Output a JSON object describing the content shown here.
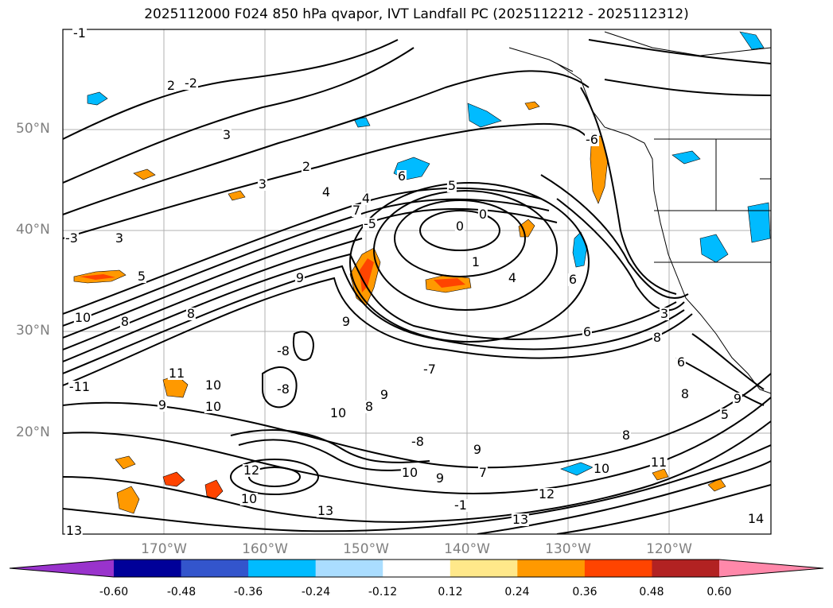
{
  "title": "2025112000 F024 850 hPa qvapor, IVT Landfall PC (2025112212 - 2025112312)",
  "map": {
    "lat_labels": [
      "50°N",
      "40°N",
      "30°N",
      "20°N"
    ],
    "lon_labels": [
      "170°W",
      "160°W",
      "150°W",
      "140°W",
      "130°W",
      "120°W"
    ],
    "contour_labels": [
      "-1",
      "-2",
      "2",
      "3",
      "2",
      "3",
      "4",
      "4",
      "3",
      "-3",
      "5",
      "6",
      "7",
      "5",
      "-5",
      "0",
      "0",
      "1",
      "4",
      "6",
      "-6",
      "6",
      "9",
      "9",
      "8",
      "10",
      "10",
      "8",
      "-8",
      "-8",
      "9",
      "11",
      "9",
      "10",
      "-11",
      "10",
      "8",
      "-8",
      "9",
      "10",
      "9",
      "8",
      "11",
      "10",
      "12",
      "12",
      "13",
      "13",
      "10",
      "7",
      "8",
      "-1",
      "9",
      "5",
      "6",
      "8",
      "3",
      "-7",
      "13",
      "14"
    ]
  },
  "colorbar": {
    "ticks": [
      "-0.60",
      "-0.48",
      "-0.36",
      "-0.24",
      "-0.12",
      "0.12",
      "0.24",
      "0.36",
      "0.48",
      "0.60"
    ],
    "colors": [
      "#9933cc",
      "#000099",
      "#3355cc",
      "#00bbff",
      "#aaddff",
      "#ffffff",
      "#ffe88a",
      "#ff9900",
      "#ff4400",
      "#b22222",
      "#ff88aa"
    ]
  }
}
